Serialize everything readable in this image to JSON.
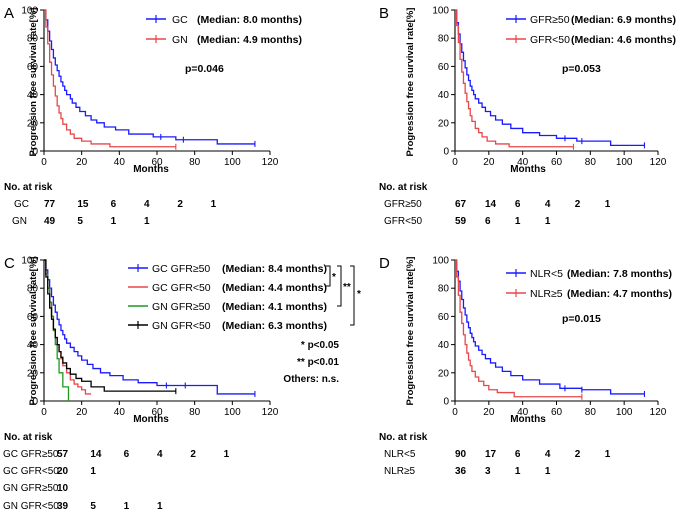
{
  "colors": {
    "blue": "#1a1aff",
    "red": "#e8474a",
    "green": "#1f9a1f",
    "black": "#000000"
  },
  "chart_data": [
    {
      "type": "line",
      "panel_label": "A",
      "title": "",
      "xlabel": "Months",
      "ylabel": "Progression free survival rate[%]",
      "xlim": [
        0,
        120
      ],
      "ylim": [
        0,
        100
      ],
      "xticks": [
        "0",
        "20",
        "40",
        "60",
        "80",
        "100",
        "120"
      ],
      "yticks": [
        "0",
        "20",
        "40",
        "60",
        "80",
        "100"
      ],
      "series": [
        {
          "name": "GC",
          "legend_label": "GC",
          "median_label": "(Median:  8.0 months)",
          "color": "#1a1aff",
          "x": [
            0,
            1,
            2,
            3,
            4,
            5,
            6,
            7,
            8,
            9,
            10,
            11,
            12,
            14,
            15,
            17,
            19,
            22,
            25,
            28,
            32,
            38,
            45,
            58,
            70,
            92,
            112
          ],
          "y": [
            100,
            93,
            85,
            78,
            72,
            66,
            61,
            57,
            53,
            49,
            46,
            43,
            40,
            37,
            34,
            31,
            28,
            25,
            22,
            20,
            17,
            15,
            12,
            10,
            8,
            5,
            5
          ],
          "censor_x": [
            62,
            74,
            112
          ]
        },
        {
          "name": "GN",
          "legend_label": "GN",
          "median_label": "(Median:  4.9 months)",
          "color": "#e8474a",
          "x": [
            0,
            1,
            2,
            3,
            4,
            5,
            6,
            7,
            8,
            9,
            10,
            12,
            14,
            16,
            20,
            25,
            35,
            70
          ],
          "y": [
            100,
            88,
            76,
            63,
            54,
            46,
            39,
            32,
            27,
            23,
            19,
            15,
            12,
            9,
            7,
            5,
            3,
            3
          ],
          "censor_x": [
            70
          ]
        }
      ],
      "annotation": "p=0.046",
      "risk_table": {
        "title": "No. at risk",
        "rows": [
          {
            "label": "GC",
            "values": [
              "77",
              "15",
              "6",
              "4",
              "2",
              "1"
            ]
          },
          {
            "label": "GN",
            "values": [
              "49",
              "5",
              "1",
              "1"
            ]
          }
        ]
      }
    },
    {
      "type": "line",
      "panel_label": "B",
      "title": "",
      "xlabel": "Months",
      "ylabel": "Progression free survival rate[%]",
      "xlim": [
        0,
        120
      ],
      "ylim": [
        0,
        100
      ],
      "xticks": [
        "0",
        "20",
        "40",
        "60",
        "80",
        "100",
        "120"
      ],
      "yticks": [
        "0",
        "20",
        "40",
        "60",
        "80",
        "100"
      ],
      "series": [
        {
          "name": "GFR≥50",
          "legend_label": "GFR≥50",
          "median_label": "(Median:  6.9 months)",
          "color": "#1a1aff",
          "x": [
            0,
            1,
            2,
            3,
            4,
            5,
            6,
            7,
            8,
            9,
            10,
            11,
            12,
            14,
            16,
            18,
            21,
            24,
            28,
            33,
            40,
            50,
            60,
            72,
            92,
            112
          ],
          "y": [
            100,
            91,
            83,
            76,
            70,
            64,
            59,
            54,
            50,
            46,
            43,
            40,
            37,
            34,
            31,
            28,
            25,
            22,
            19,
            16,
            13,
            11,
            9,
            7,
            4,
            4
          ],
          "censor_x": [
            65,
            75,
            112
          ]
        },
        {
          "name": "GFR<50",
          "legend_label": "GFR<50",
          "median_label": "(Median:  4.6 months)",
          "color": "#e8474a",
          "x": [
            0,
            1,
            2,
            3,
            4,
            5,
            6,
            7,
            8,
            9,
            10,
            12,
            14,
            16,
            19,
            24,
            32,
            70
          ],
          "y": [
            100,
            89,
            77,
            65,
            56,
            48,
            41,
            35,
            30,
            25,
            21,
            16,
            13,
            10,
            7,
            5,
            3,
            3
          ],
          "censor_x": [
            70
          ]
        }
      ],
      "annotation": "p=0.053",
      "risk_table": {
        "title": "No. at risk",
        "rows": [
          {
            "label": "GFR≥50",
            "values": [
              "67",
              "14",
              "6",
              "4",
              "2",
              "1"
            ]
          },
          {
            "label": "GFR<50",
            "values": [
              "59",
              "6",
              "1",
              "1"
            ]
          }
        ]
      }
    },
    {
      "type": "line",
      "panel_label": "C",
      "title": "",
      "xlabel": "Months",
      "ylabel": "Progression free survival rate[%]",
      "xlim": [
        0,
        120
      ],
      "ylim": [
        0,
        100
      ],
      "xticks": [
        "0",
        "20",
        "40",
        "60",
        "80",
        "100",
        "120"
      ],
      "yticks": [
        "0",
        "20",
        "40",
        "60",
        "80",
        "100"
      ],
      "series": [
        {
          "name": "GC GFR≥50",
          "legend_label": "GC  GFR≥50",
          "median_label": "(Median:  8.4 months)",
          "color": "#1a1aff",
          "x": [
            0,
            1,
            2,
            3,
            4,
            5,
            6,
            7,
            8,
            9,
            10,
            11,
            12,
            14,
            16,
            18,
            20,
            23,
            26,
            30,
            35,
            42,
            50,
            60,
            75,
            92,
            112
          ],
          "y": [
            100,
            93,
            86,
            80,
            74,
            68,
            63,
            58,
            54,
            50,
            47,
            44,
            41,
            38,
            35,
            32,
            29,
            26,
            23,
            20,
            18,
            15,
            13,
            11,
            11,
            5,
            5
          ],
          "censor_x": [
            65,
            75,
            112
          ]
        },
        {
          "name": "GC GFR<50",
          "legend_label": "GC  GFR<50",
          "median_label": "(Median:  4.4 months)",
          "color": "#e8474a",
          "x": [
            0,
            1,
            2,
            3,
            4,
            5,
            6,
            7,
            8,
            9,
            10,
            12,
            14,
            16,
            18,
            20,
            22,
            25
          ],
          "y": [
            100,
            90,
            80,
            70,
            60,
            50,
            45,
            40,
            35,
            30,
            25,
            20,
            15,
            12,
            10,
            8,
            5,
            5
          ],
          "censor_x": []
        },
        {
          "name": "GN GFR≥50",
          "legend_label": "GN  GFR≥50",
          "median_label": "(Median:  4.1 months)",
          "color": "#1f9a1f",
          "x": [
            0,
            1,
            2,
            3,
            4,
            5,
            6,
            7,
            8,
            10,
            12,
            13
          ],
          "y": [
            100,
            90,
            80,
            70,
            60,
            50,
            40,
            30,
            20,
            10,
            10,
            0
          ],
          "censor_x": []
        },
        {
          "name": "GN GFR<50",
          "legend_label": "GN  GFR<50",
          "median_label": "(Median:  6.3 months)",
          "color": "#000000",
          "x": [
            0,
            1,
            2,
            3,
            4,
            5,
            6,
            7,
            8,
            9,
            10,
            12,
            14,
            17,
            20,
            25,
            32,
            70
          ],
          "y": [
            100,
            88,
            76,
            66,
            58,
            51,
            45,
            40,
            35,
            31,
            27,
            23,
            19,
            16,
            14,
            10,
            7,
            7
          ],
          "censor_x": [
            70
          ]
        }
      ],
      "significance": [
        "*",
        "**",
        "*"
      ],
      "annotations": [
        "* p<0.05",
        "** p<0.01",
        "Others: n.s."
      ],
      "risk_table": {
        "title": "No. at risk",
        "rows": [
          {
            "label": "GC  GFR≥50",
            "values": [
              "57",
              "14",
              "6",
              "4",
              "2",
              "1"
            ]
          },
          {
            "label": "GC  GFR<50",
            "values": [
              "20",
              "1"
            ]
          },
          {
            "label": "GN  GFR≥50",
            "values": [
              "10"
            ]
          },
          {
            "label": "GN  GFR<50",
            "values": [
              "39",
              "5",
              "1",
              "1"
            ]
          }
        ]
      }
    },
    {
      "type": "line",
      "panel_label": "D",
      "title": "",
      "xlabel": "Months",
      "ylabel": "Progression free survival rate[%]",
      "xlim": [
        0,
        120
      ],
      "ylim": [
        0,
        100
      ],
      "xticks": [
        "0",
        "20",
        "40",
        "60",
        "80",
        "100",
        "120"
      ],
      "yticks": [
        "0",
        "20",
        "40",
        "60",
        "80",
        "100"
      ],
      "series": [
        {
          "name": "NLR<5",
          "legend_label": "NLR<5",
          "median_label": "(Median:  7.8 months)",
          "color": "#1a1aff",
          "x": [
            0,
            1,
            2,
            3,
            4,
            5,
            6,
            7,
            8,
            9,
            10,
            11,
            12,
            14,
            16,
            18,
            21,
            24,
            28,
            33,
            40,
            50,
            62,
            75,
            92,
            112
          ],
          "y": [
            100,
            92,
            85,
            78,
            72,
            66,
            61,
            56,
            52,
            48,
            45,
            42,
            39,
            36,
            33,
            30,
            27,
            24,
            21,
            18,
            15,
            12,
            9,
            8,
            5,
            5
          ],
          "censor_x": [
            65,
            75,
            112
          ]
        },
        {
          "name": "NLR≥5",
          "legend_label": "NLR≥5",
          "median_label": "(Median:  4.7 months)",
          "color": "#e8474a",
          "x": [
            0,
            1,
            2,
            3,
            4,
            5,
            6,
            7,
            8,
            9,
            10,
            12,
            14,
            17,
            20,
            25,
            35,
            75
          ],
          "y": [
            100,
            88,
            75,
            63,
            55,
            47,
            40,
            34,
            29,
            25,
            21,
            17,
            14,
            11,
            8,
            6,
            3,
            3
          ],
          "censor_x": [
            75
          ]
        }
      ],
      "annotation": "p=0.015",
      "risk_table": {
        "title": "No. at risk",
        "rows": [
          {
            "label": "NLR<5",
            "values": [
              "90",
              "17",
              "6",
              "4",
              "2",
              "1"
            ]
          },
          {
            "label": "NLR≥5",
            "values": [
              "36",
              "3",
              "1",
              "1"
            ]
          }
        ]
      }
    }
  ]
}
